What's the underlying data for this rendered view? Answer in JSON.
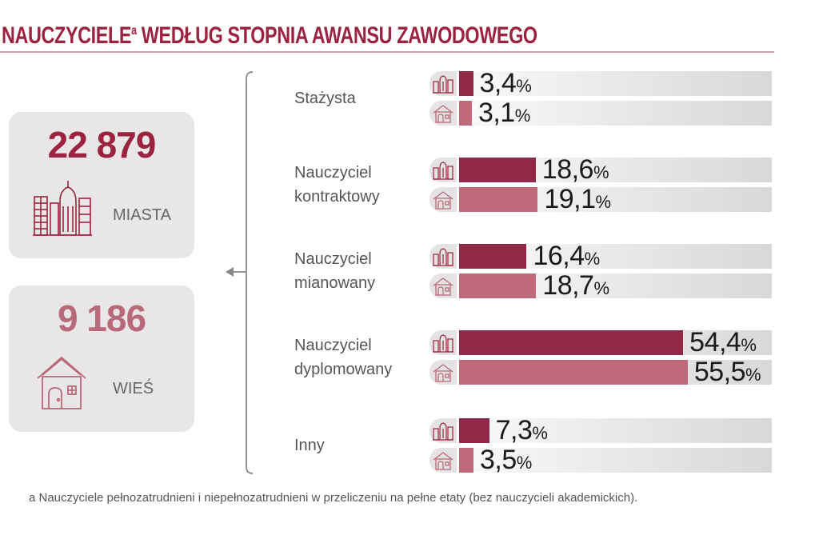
{
  "title": "NAUCZYCIELE",
  "title_sup": "a",
  "title_rest": " WEDŁUG STOPNIA AWANSU ZAWODOWEGO",
  "colors": {
    "city": "#912848",
    "village": "#bf6a7b",
    "accent": "#9b2340"
  },
  "summary": {
    "city": {
      "value": "22 879",
      "label": "MIASTA",
      "icon": "city-buildings-icon"
    },
    "village": {
      "value": "9 186",
      "label": "WIEŚ",
      "icon": "house-icon"
    }
  },
  "chart_data": {
    "type": "bar",
    "orientation": "horizontal",
    "unit": "%",
    "xlim": [
      0,
      100
    ],
    "categories": [
      "Stażysta",
      "Nauczyciel kontraktowy",
      "Nauczyciel mianowany",
      "Nauczyciel dyplomowany",
      "Inny"
    ],
    "category_lines": [
      [
        "Stażysta"
      ],
      [
        "Nauczyciel",
        "kontraktowy"
      ],
      [
        "Nauczyciel",
        "mianowany"
      ],
      [
        "Nauczyciel",
        "dyplomowany"
      ],
      [
        "Inny"
      ]
    ],
    "series": [
      {
        "name": "Miasta",
        "values": [
          3.4,
          18.6,
          16.4,
          54.4,
          7.3
        ],
        "labels": [
          "3,4",
          "18,6",
          "16,4",
          "54,4",
          "7,3"
        ]
      },
      {
        "name": "Wieś",
        "values": [
          3.1,
          19.1,
          18.7,
          55.5,
          3.5
        ],
        "labels": [
          "3,1",
          "19,1",
          "18,7",
          "55,5",
          "3,5"
        ]
      }
    ]
  },
  "footnote": "a Nauczyciele pełnozatrudnieni i niepełnozatrudnieni w przeliczeniu na pełne etaty (bez nauczycieli akademickich)."
}
